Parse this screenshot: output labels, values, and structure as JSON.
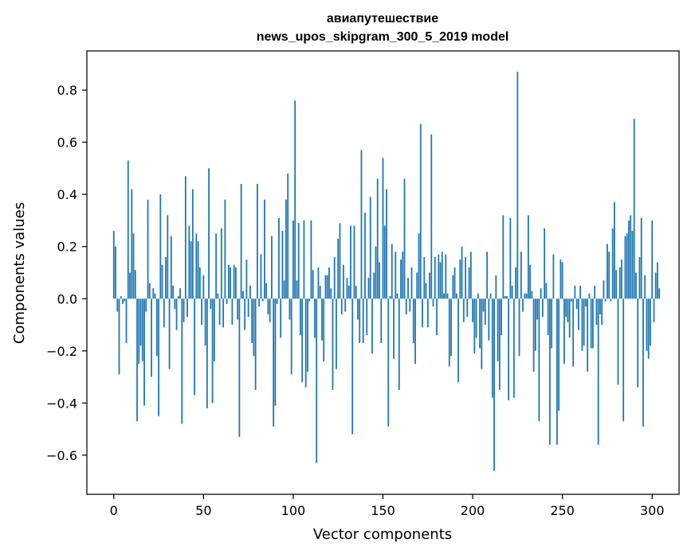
{
  "chart_data": {
    "type": "bar",
    "title": "авиапутешествие",
    "subtitle": "news_upos_skipgram_300_5_2019 model",
    "xlabel": "Vector components",
    "ylabel": "Components values",
    "xlim": [
      -15,
      315
    ],
    "ylim": [
      -0.75,
      0.95
    ],
    "xticks": [
      0,
      50,
      100,
      150,
      200,
      250,
      300
    ],
    "xtick_labels": [
      "0",
      "50",
      "100",
      "150",
      "200",
      "250",
      "300"
    ],
    "yticks": [
      -0.6,
      -0.4,
      -0.2,
      0.0,
      0.2,
      0.4,
      0.6,
      0.8
    ],
    "ytick_labels": [
      "−0.6",
      "−0.4",
      "−0.2",
      "0.0",
      "0.2",
      "0.4",
      "0.6",
      "0.8"
    ],
    "grid": false,
    "bar_color": "#1f77b4",
    "values": [
      0.26,
      0.2,
      -0.05,
      -0.29,
      0.01,
      -0.02,
      -0.01,
      -0.17,
      0.53,
      0.1,
      0.42,
      0.25,
      0.11,
      -0.47,
      -0.25,
      -0.18,
      -0.24,
      -0.41,
      -0.05,
      0.38,
      0.06,
      -0.3,
      0.04,
      0.02,
      -0.22,
      -0.45,
      0.4,
      0.13,
      -0.11,
      0.16,
      0.32,
      -0.27,
      0.24,
      0.05,
      -0.04,
      -0.12,
      0.01,
      0.04,
      -0.48,
      -0.09,
      0.47,
      -0.07,
      0.28,
      0.22,
      0.42,
      -0.37,
      0.25,
      0.22,
      0.12,
      -0.1,
      0.09,
      -0.18,
      -0.42,
      0.5,
      -0.04,
      -0.4,
      -0.24,
      0.25,
      0.02,
      -0.1,
      0.27,
      -0.11,
      0.38,
      -0.02,
      0.13,
      0.12,
      -0.1,
      0.13,
      0.12,
      -0.08,
      -0.53,
      0.44,
      0.03,
      -0.12,
      0.15,
      -0.07,
      0.05,
      -0.17,
      -0.22,
      -0.35,
      0.44,
      -0.03,
      0.17,
      -0.01,
      0.38,
      0.06,
      -0.06,
      -0.09,
      0.24,
      -0.49,
      -0.41,
      -0.02,
      0.31,
      -0.15,
      0.26,
      0.07,
      0.38,
      0.48,
      -0.08,
      -0.29,
      0.3,
      0.76,
      0.07,
      0.29,
      -0.14,
      -0.32,
      0.3,
      -0.34,
      -0.28,
      -0.01,
      0.3,
      0.11,
      -0.15,
      -0.63,
      0.12,
      0.05,
      -0.16,
      -0.24,
      0.09,
      0.09,
      0.12,
      0.04,
      -0.35,
      0.16,
      -0.27,
      0.23,
      0.29,
      -0.06,
      0.13,
      -0.05,
      0.08,
      0.05,
      0.28,
      -0.52,
      0.28,
      0.05,
      -0.08,
      -0.17,
      0.57,
      -0.17,
      0.33,
      -0.14,
      0.08,
      0.39,
      -0.21,
      0.1,
      0.2,
      0.46,
      0.14,
      -0.17,
      0.54,
      0.28,
      0.42,
      -0.49,
      0.01,
      0.21,
      -0.23,
      0.18,
      0.02,
      -0.35,
      0.15,
      0.18,
      0.46,
      -0.06,
      0.08,
      -0.05,
      0.12,
      -0.17,
      -0.25,
      0.1,
      0.25,
      0.67,
      -0.11,
      0.16,
      0.06,
      -0.11,
      0.1,
      0.63,
      -0.03,
      0.16,
      -0.14,
      0.17,
      0.14,
      0.18,
      0.02,
      0.17,
      0.02,
      -0.26,
      -0.22,
      0.09,
      0.12,
      0.02,
      -0.32,
      0.15,
      0.2,
      -0.09,
      0.16,
      -0.07,
      0.12,
      0.18,
      -0.09,
      -0.21,
      -0.15,
      0.02,
      -0.19,
      -0.27,
      -0.05,
      -0.1,
      0.18,
      -0.16,
      0.02,
      -0.38,
      -0.66,
      0.09,
      -0.24,
      -0.35,
      -0.14,
      0.32,
      0.01,
      0.01,
      -0.39,
      0.31,
      0.05,
      -0.38,
      0.12,
      0.87,
      -0.22,
      0.18,
      -0.05,
      0.02,
      0.02,
      0.32,
      0.13,
      0.03,
      -0.28,
      -0.2,
      -0.08,
      -0.47,
      0.04,
      -0.07,
      0.27,
      0.06,
      -0.14,
      -0.56,
      -0.19,
      0.17,
      0.0,
      -0.56,
      -0.43,
      0.15,
      0.14,
      -0.25,
      -0.07,
      -0.09,
      -0.15,
      -0.01,
      -0.26,
      0.05,
      -0.04,
      -0.12,
      0.05,
      -0.2,
      -0.18,
      -0.03,
      -0.28,
      0.02,
      -0.19,
      -0.19,
      0.05,
      -0.1,
      -0.56,
      -0.06,
      -0.1,
      0.07,
      -0.01,
      0.21,
      0.18,
      -0.01,
      0.27,
      0.37,
      0.11,
      -0.33,
      0.12,
      0.15,
      -0.47,
      0.24,
      0.25,
      0.3,
      0.32,
      0.26,
      0.69,
      0.1,
      -0.34,
      0.16,
      0.31,
      -0.49,
      0.09,
      -0.2,
      -0.23,
      -0.18,
      0.3,
      -0.09,
      0.1,
      0.14,
      0.04
    ]
  }
}
